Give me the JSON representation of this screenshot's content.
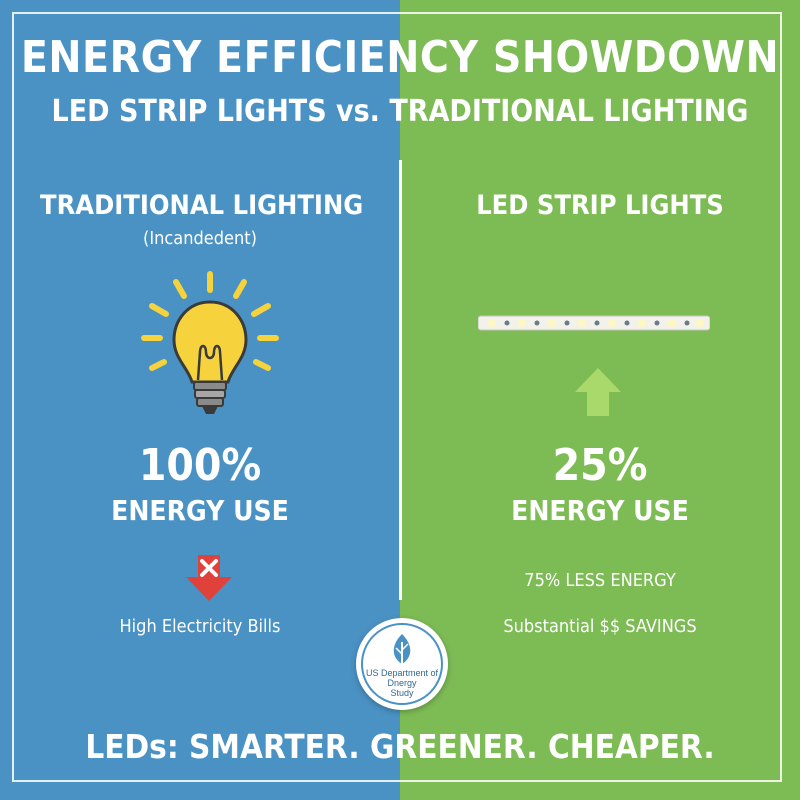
{
  "header": {
    "title": "ENERGY EFFICIENCY SHOWDOWN",
    "subtitle": "LED STRIP LIGHTS vs. TRADITIONAL LIGHTING"
  },
  "left": {
    "heading": "TRADITIONAL LIGHTING",
    "subheading": "(Incandedent)",
    "icon": "lightbulb-icon",
    "percent": "100%",
    "energy_label": "ENERGY USE",
    "down_icon": "red-down-arrow-x-icon",
    "note": "High Electricity Bills"
  },
  "right": {
    "heading": "LED STRIP LIGHTS",
    "icon": "led-strip-icon",
    "up_icon": "green-up-arrow-icon",
    "percent": "25%",
    "energy_label": "ENERGY USE",
    "note1": "75% LESS ENERGY",
    "note2": "Substantial $$ SAVINGS"
  },
  "seal": {
    "line1": "US Department of",
    "line2": "Dnergy",
    "line3": "Study"
  },
  "footer": {
    "tagline": "LEDs: SMARTER. GREENER. CHEAPER."
  },
  "colors": {
    "left_bg": "#4a92c4",
    "right_bg": "#7dbb55",
    "bulb": "#f6d33c",
    "down_arrow": "#e0413a",
    "up_arrow": "#a8d96a"
  }
}
